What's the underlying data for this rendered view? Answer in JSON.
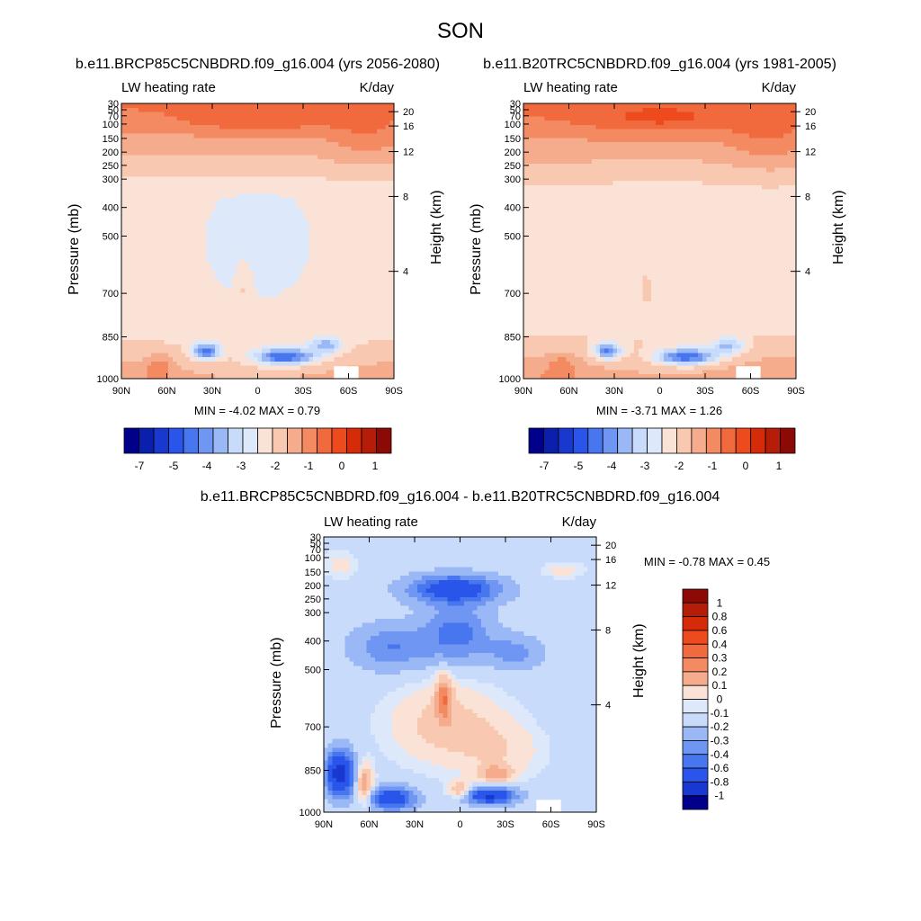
{
  "figure": {
    "title": "SON"
  },
  "palette": [
    "#00008b",
    "#0a1fab",
    "#1838d0",
    "#2a55ea",
    "#4876ee",
    "#6e96f2",
    "#9bb8f6",
    "#c9dbfa",
    "#dde9fb",
    "#fbe2d6",
    "#f8c9b0",
    "#f5ac8c",
    "#f38a62",
    "#f16a3e",
    "#ed4b1d",
    "#d52b08",
    "#b51d08",
    "#8b0a06"
  ],
  "chart_data": [
    {
      "type": "heatmap",
      "id": "panel-1",
      "title": "b.e11.BRCP85C5CNBDRD.f09_g16.004 (yrs 2056-2080)",
      "left_label": "LW heating rate",
      "right_label": "K/day",
      "ylabel": "Pressure (mb)",
      "y2label": "Height (km)",
      "x": [
        "90N",
        "60N",
        "30N",
        "0",
        "30S",
        "60S",
        "90S"
      ],
      "y_ticks": [
        "30",
        "50",
        "70",
        "100",
        "150",
        "200",
        "250",
        "300",
        "400",
        "500",
        "700",
        "850",
        "1000"
      ],
      "y2_ticks": [
        "20",
        "16",
        "12",
        "8",
        "4"
      ],
      "stats": "MIN =  -4.02  MAX =   0.79",
      "colorbar": {
        "orientation": "horizontal",
        "labels": [
          "-7",
          "-5",
          "-4",
          "-3",
          "-2",
          "-1",
          "0",
          "1"
        ]
      }
    },
    {
      "type": "heatmap",
      "id": "panel-2",
      "title": "b.e11.B20TRC5CNBDRD.f09_g16.004 (yrs 1981-2005)",
      "left_label": "LW heating rate",
      "right_label": "K/day",
      "ylabel": "Pressure (mb)",
      "y2label": "Height (km)",
      "x": [
        "90N",
        "60N",
        "30N",
        "0",
        "30S",
        "60S",
        "90S"
      ],
      "y_ticks": [
        "30",
        "50",
        "70",
        "100",
        "150",
        "200",
        "250",
        "300",
        "400",
        "500",
        "700",
        "850",
        "1000"
      ],
      "y2_ticks": [
        "20",
        "16",
        "12",
        "8",
        "4"
      ],
      "stats": "MIN =  -3.71  MAX =   1.26",
      "colorbar": {
        "orientation": "horizontal",
        "labels": [
          "-7",
          "-5",
          "-4",
          "-3",
          "-2",
          "-1",
          "0",
          "1"
        ]
      }
    },
    {
      "type": "heatmap",
      "id": "panel-3",
      "title": "b.e11.BRCP85C5CNBDRD.f09_g16.004 - b.e11.B20TRC5CNBDRD.f09_g16.004",
      "left_label": "LW heating rate",
      "right_label": "K/day",
      "ylabel": "Pressure (mb)",
      "y2label": "Height (km)",
      "x": [
        "90N",
        "60N",
        "30N",
        "0",
        "30S",
        "60S",
        "90S"
      ],
      "y_ticks": [
        "30",
        "50",
        "70",
        "100",
        "150",
        "200",
        "250",
        "300",
        "400",
        "500",
        "700",
        "850",
        "1000"
      ],
      "y2_ticks": [
        "20",
        "16",
        "12",
        "8",
        "4"
      ],
      "stats": "MIN =  -0.78  MAX =   0.45",
      "colorbar": {
        "orientation": "vertical",
        "labels": [
          "1",
          "0.8",
          "0.6",
          "0.4",
          "0.3",
          "0.2",
          "0.1",
          "0",
          "-0.1",
          "-0.2",
          "-0.3",
          "-0.4",
          "-0.6",
          "-0.8",
          "-1"
        ]
      }
    }
  ]
}
